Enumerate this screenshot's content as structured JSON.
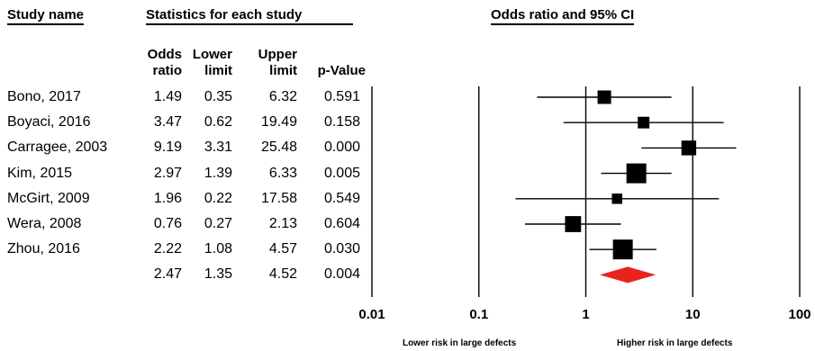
{
  "headers": {
    "study_name": "Study name",
    "statistics": "Statistics for each study",
    "odds_ci": "Odds ratio and 95% CI"
  },
  "columns": {
    "or_top": "Odds",
    "or_bottom": "ratio",
    "ll_top": "Lower",
    "ll_bottom": "limit",
    "ul_top": "Upper",
    "ul_bottom": "limit",
    "p_bottom": "p-Value"
  },
  "footer": {
    "left": "Lower risk in large defects",
    "right": "Higher risk in large defects"
  },
  "chart_data": {
    "type": "forest",
    "x_scale": "log",
    "xlim": [
      0.01,
      100
    ],
    "x_ticks": [
      "0.01",
      "0.1",
      "1",
      "10",
      "100"
    ],
    "studies": [
      {
        "name": "Bono, 2017",
        "or": "1.49",
        "lower": "0.35",
        "upper": "6.32",
        "p": "0.591",
        "or_v": 1.49,
        "lower_v": 0.35,
        "upper_v": 6.32,
        "weight": 0.5
      },
      {
        "name": "Boyaci, 2016",
        "or": "3.47",
        "lower": "0.62",
        "upper": "19.49",
        "p": "0.158",
        "or_v": 3.47,
        "lower_v": 0.62,
        "upper_v": 19.49,
        "weight": 0.35
      },
      {
        "name": "Carragee, 2003",
        "or": "9.19",
        "lower": "3.31",
        "upper": "25.48",
        "p": "0.000",
        "or_v": 9.19,
        "lower_v": 3.31,
        "upper_v": 25.48,
        "weight": 0.6
      },
      {
        "name": "Kim, 2015",
        "or": "2.97",
        "lower": "1.39",
        "upper": "6.33",
        "p": "0.005",
        "or_v": 2.97,
        "lower_v": 1.39,
        "upper_v": 6.33,
        "weight": 1.0
      },
      {
        "name": "McGirt, 2009",
        "or": "1.96",
        "lower": "0.22",
        "upper": "17.58",
        "p": "0.549",
        "or_v": 1.96,
        "lower_v": 0.22,
        "upper_v": 17.58,
        "weight": 0.25
      },
      {
        "name": "Wera, 2008",
        "or": "0.76",
        "lower": "0.27",
        "upper": "2.13",
        "p": "0.604",
        "or_v": 0.76,
        "lower_v": 0.27,
        "upper_v": 2.13,
        "weight": 0.7
      },
      {
        "name": "Zhou, 2016",
        "or": "2.22",
        "lower": "1.08",
        "upper": "4.57",
        "p": "0.030",
        "or_v": 2.22,
        "lower_v": 1.08,
        "upper_v": 4.57,
        "weight": 1.0
      }
    ],
    "summary": {
      "or": "2.47",
      "lower": "1.35",
      "upper": "4.52",
      "p": "0.004",
      "or_v": 2.47,
      "lower_v": 1.35,
      "upper_v": 4.52
    },
    "colors": {
      "summary": "#e8231e",
      "marker": "#000000"
    }
  }
}
